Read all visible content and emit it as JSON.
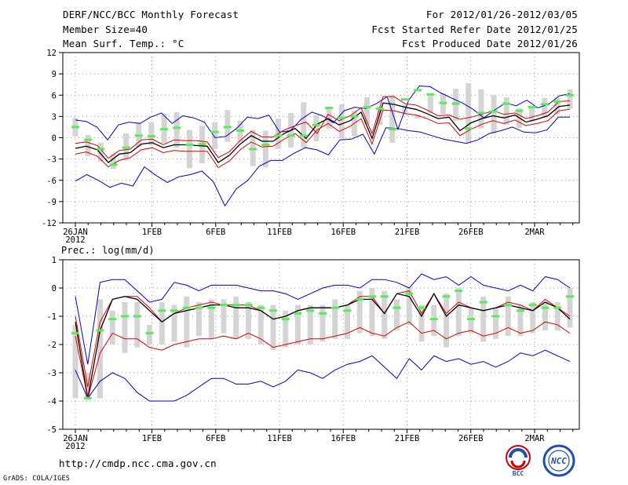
{
  "header": {
    "title": "DERF/NCC/BCC Monthly Forecast",
    "member_size": "Member Size=40",
    "variable": "Mean Surf. Temp.: °C",
    "period": "For 2012/01/26-2012/03/05",
    "started": "Fcst Started Refer Date 2012/01/25",
    "produced": "Fcst Produced Date 2012/01/26"
  },
  "footer": {
    "url": "http://cmdp.ncc.cma.gov.cn",
    "credit": "GrADS: COLA/IGES",
    "logo_bcc": "BCC",
    "logo_ncc": "NCC"
  },
  "colors": {
    "box": "#d4d4d4",
    "obs": "#55ee55",
    "mean": "#000000",
    "inner": "#dd0000",
    "outer": "#0000cc"
  },
  "chart_data": [
    {
      "type": "line",
      "title": "Mean Surf. Temp.: °C",
      "x_tick_labels": [
        "26JAN",
        "1FEB",
        "6FEB",
        "11FEB",
        "16FEB",
        "21FEB",
        "26FEB",
        "2MAR"
      ],
      "x_tick_days": [
        0,
        6,
        11,
        16,
        21,
        26,
        31,
        36
      ],
      "x_sub_label": "2012",
      "ylim": [
        -12,
        12
      ],
      "yticks": [
        12,
        9,
        6,
        3,
        0,
        -3,
        -6,
        -9,
        -12
      ],
      "days": 40,
      "series": [
        {
          "name": "ensemble max",
          "color": "#0000cc",
          "values": [
            2.5,
            2.3,
            1.5,
            -0.3,
            1.8,
            2.2,
            2.0,
            2.9,
            3.5,
            2.0,
            3.1,
            2.8,
            2.2,
            0.0,
            0.2,
            1.3,
            2.9,
            2.7,
            3.2,
            0.8,
            1.0,
            2.6,
            3.6,
            3.1,
            2.1,
            3.8,
            4.3,
            4.1,
            4.8,
            5.8,
            1.2,
            5.3,
            7.3,
            7.2,
            6.3,
            5.6,
            4.9,
            4.0,
            2.8,
            3.9,
            4.9,
            4.5,
            5.3,
            4.2,
            4.7,
            5.9,
            6.2
          ]
        },
        {
          "name": "upper spread",
          "color": "#dd0000",
          "values": [
            -0.8,
            -0.6,
            -1.1,
            -2.9,
            -1.8,
            -1.6,
            -0.3,
            -0.2,
            -1.0,
            -0.3,
            -0.4,
            -0.4,
            -0.6,
            -2.8,
            -2.0,
            -0.4,
            0.9,
            0.1,
            0.1,
            1.1,
            1.7,
            2.2,
            0.6,
            3.3,
            2.4,
            3.1,
            4.2,
            0.6,
            5.8,
            5.8,
            4.8,
            4.6,
            3.9,
            3.1,
            3.2,
            2.6,
            2.9,
            3.3,
            3.8,
            3.3,
            3.5,
            2.7,
            3.1,
            3.6,
            5.1,
            5.2
          ]
        },
        {
          "name": "ensemble mean",
          "color": "#000000",
          "values": [
            -1.5,
            -1.2,
            -1.7,
            -3.5,
            -2.3,
            -2.1,
            -0.9,
            -0.7,
            -1.4,
            -1.0,
            -1.0,
            -1.1,
            -1.2,
            -3.5,
            -2.5,
            -0.9,
            0.3,
            -0.5,
            -0.5,
            0.6,
            1.3,
            -0.1,
            1.9,
            2.7,
            1.8,
            2.4,
            3.6,
            -0.1,
            4.9,
            4.7,
            4.3,
            4.0,
            3.4,
            2.7,
            2.9,
            1.0,
            2.1,
            2.7,
            3.1,
            2.8,
            3.2,
            2.2,
            2.6,
            3.1,
            4.4,
            4.6
          ]
        },
        {
          "name": "lower spread",
          "color": "#dd0000",
          "values": [
            -2.3,
            -2.0,
            -2.6,
            -4.1,
            -3.2,
            -2.8,
            -1.7,
            -1.4,
            -2.1,
            -1.8,
            -1.9,
            -1.9,
            -1.9,
            -4.2,
            -3.3,
            -1.7,
            -0.6,
            -1.3,
            -1.2,
            -0.2,
            0.6,
            -0.7,
            1.1,
            2.0,
            0.9,
            1.6,
            2.7,
            -0.9,
            3.9,
            3.8,
            3.4,
            3.2,
            2.7,
            2.0,
            2.1,
            0.3,
            1.2,
            1.9,
            2.4,
            2.0,
            2.5,
            1.7,
            2.0,
            2.4,
            3.8,
            4.0
          ]
        },
        {
          "name": "ensemble min",
          "color": "#0000cc",
          "values": [
            -6.1,
            -5.2,
            -6.0,
            -7.0,
            -6.4,
            -6.8,
            -4.1,
            -5.3,
            -6.3,
            -5.5,
            -5.2,
            -4.7,
            -6.2,
            -9.6,
            -7.2,
            -6.0,
            -4.0,
            -3.2,
            -3.2,
            -2.2,
            -1.4,
            -1.7,
            -2.4,
            -0.3,
            -0.2,
            0.5,
            -2.3,
            1.4,
            1.3,
            1.0,
            0.8,
            0.3,
            -0.2,
            -0.5,
            -0.8,
            -0.3,
            0.6,
            1.0,
            1.5,
            0.8,
            0.7,
            1.1,
            2.9,
            2.9
          ]
        },
        {
          "name": "observed/green marks",
          "color": "#55ee55",
          "values": [
            1.5,
            -0.3,
            -1.6,
            -3.8,
            -1.4,
            0.3,
            0.2,
            1.2,
            1.4,
            -1.0,
            -0.9,
            0.8,
            1.5,
            1.0,
            -1.6,
            -1.0,
            0.3,
            0.3,
            0.3,
            1.8,
            4.2,
            2.8,
            3.0,
            4.3,
            4.1,
            1.2,
            5.4,
            6.7,
            6.1,
            4.9,
            4.8,
            1.3,
            3.5,
            3.7,
            4.8,
            3.8,
            4.3,
            4.7,
            5.1,
            6.0
          ]
        },
        {
          "name": "box upper",
          "color": "#d4d4d4",
          "values": [
            2.8,
            0.4,
            -0.7,
            -2.3,
            0.6,
            2.2,
            2.2,
            3.4,
            3.6,
            1.1,
            1.7,
            2.2,
            3.9,
            2.4,
            1.1,
            1.0,
            2.7,
            3.5,
            5.0,
            3.2,
            4.3,
            4.7,
            3.8,
            5.7,
            4.4,
            6.0,
            4.6,
            2.7,
            6.2,
            6.2,
            6.9,
            7.7,
            6.8,
            6.0,
            5.7,
            4.2,
            4.5,
            5.6,
            5.6,
            6.8,
            5.2,
            5.5,
            6.2,
            6.5
          ]
        },
        {
          "name": "box lower",
          "color": "#d4d4d4",
          "values": [
            0.2,
            -2.6,
            -3.4,
            -4.4,
            -3.2,
            -1.3,
            -1.1,
            -0.8,
            -1.4,
            -4.3,
            -3.6,
            -1.6,
            -0.6,
            -0.6,
            -4.0,
            -4.2,
            -1.6,
            -1.4,
            -1.4,
            -0.5,
            1.3,
            -0.1,
            0.2,
            1.9,
            1.8,
            -0.7,
            3.4,
            3.3,
            3.5,
            3.3,
            2.4,
            -0.7,
            1.3,
            0.6,
            1.8,
            1.4,
            2.3,
            2.8,
            3.3,
            4.1
          ]
        }
      ]
    },
    {
      "type": "line",
      "title": "Prec.: log(mm/d)",
      "x_tick_labels": [
        "26JAN",
        "1FEB",
        "6FEB",
        "11FEB",
        "16FEB",
        "21FEB",
        "26FEB",
        "2MAR"
      ],
      "x_tick_days": [
        0,
        6,
        11,
        16,
        21,
        26,
        31,
        36
      ],
      "x_sub_label": "2012",
      "ylim": [
        -5,
        1
      ],
      "yticks": [
        1,
        0,
        -1,
        -2,
        -3,
        -4,
        -5
      ],
      "days": 40,
      "series": [
        {
          "name": "ensemble max",
          "color": "#0000cc",
          "values": [
            -0.3,
            -2.7,
            0.2,
            0.3,
            0.3,
            -0.1,
            -0.5,
            -0.4,
            0.2,
            0.1,
            -0.1,
            0.1,
            0.1,
            0.1,
            0.0,
            -0.1,
            -0.1,
            -0.2,
            -0.4,
            -0.2,
            0.0,
            0.1,
            0.1,
            0.0,
            0.3,
            0.3,
            0.2,
            0.0,
            0.5,
            0.3,
            0.4,
            0.1,
            0.4,
            0.1,
            0.0,
            -0.1,
            0.1,
            -0.1,
            0.4,
            0.3,
            0.0
          ]
        },
        {
          "name": "upper spread",
          "color": "#dd0000",
          "values": [
            -1.0,
            -3.5,
            -1.2,
            -0.4,
            -0.3,
            -0.3,
            -0.7,
            -1.2,
            -0.9,
            -0.7,
            -0.6,
            -0.5,
            -0.6,
            -0.6,
            -0.6,
            -0.8,
            -1.1,
            -1.0,
            -0.8,
            -0.7,
            -0.7,
            -0.7,
            -0.6,
            -0.3,
            -0.3,
            -0.9,
            -0.2,
            -0.1,
            -0.9,
            -0.2,
            -0.9,
            -0.5,
            -0.7,
            -0.8,
            -0.7,
            -0.5,
            -0.6,
            -0.8,
            -0.4,
            -0.7,
            -1.0
          ]
        },
        {
          "name": "ensemble mean",
          "color": "#000000",
          "values": [
            -1.2,
            -3.9,
            -1.5,
            -0.4,
            -0.3,
            -0.4,
            -0.8,
            -1.2,
            -0.9,
            -0.8,
            -0.7,
            -0.6,
            -0.6,
            -0.7,
            -0.7,
            -0.8,
            -1.1,
            -1.0,
            -0.8,
            -0.7,
            -0.7,
            -0.7,
            -0.6,
            -0.4,
            -0.4,
            -0.9,
            -0.2,
            -0.3,
            -1.0,
            -0.2,
            -1.0,
            -0.6,
            -0.7,
            -0.8,
            -0.7,
            -0.6,
            -0.7,
            -0.8,
            -0.5,
            -0.7,
            -1.1
          ]
        },
        {
          "name": "lower spread",
          "color": "#dd0000",
          "values": [
            -1.7,
            -3.9,
            -2.3,
            -1.6,
            -1.8,
            -1.8,
            -2.1,
            -2.2,
            -2.0,
            -1.9,
            -1.8,
            -1.8,
            -1.7,
            -1.8,
            -1.6,
            -1.8,
            -2.1,
            -2.0,
            -1.9,
            -1.8,
            -1.8,
            -1.7,
            -1.6,
            -1.4,
            -1.6,
            -1.7,
            -1.4,
            -1.2,
            -1.6,
            -1.5,
            -1.8,
            -1.6,
            -1.5,
            -1.7,
            -1.6,
            -1.4,
            -1.6,
            -1.5,
            -1.2,
            -1.3,
            -1.6
          ]
        },
        {
          "name": "ensemble min",
          "color": "#0000cc",
          "values": [
            -2.9,
            -3.9,
            -3.3,
            -3.0,
            -3.2,
            -3.7,
            -4.0,
            -4.0,
            -4.0,
            -3.8,
            -3.5,
            -3.2,
            -3.2,
            -3.4,
            -3.4,
            -3.3,
            -3.5,
            -3.3,
            -2.9,
            -3.0,
            -3.2,
            -2.9,
            -2.7,
            -2.6,
            -2.4,
            -2.8,
            -3.2,
            -2.5,
            -2.9,
            -2.4,
            -2.6,
            -2.5,
            -2.7,
            -2.6,
            -2.8,
            -2.6,
            -2.3,
            -2.4,
            -2.2,
            -2.4,
            -2.6
          ]
        },
        {
          "name": "observed/green marks",
          "color": "#55ee55",
          "values": [
            -1.6,
            -3.9,
            -1.5,
            -1.1,
            -1.0,
            -1.0,
            -1.6,
            -0.8,
            -0.8,
            -0.7,
            -0.7,
            -0.7,
            -0.6,
            -0.6,
            -0.6,
            -0.7,
            -0.8,
            -1.1,
            -0.9,
            -0.8,
            -0.9,
            -0.7,
            -0.8,
            -0.4,
            -0.3,
            -0.3,
            -0.7,
            -0.2,
            -0.7,
            -1.1,
            -0.3,
            -0.1,
            -1.1,
            -0.5,
            -1.0,
            -0.6,
            -0.8,
            -0.6,
            -0.7,
            -0.7,
            -0.3
          ]
        },
        {
          "name": "box upper",
          "color": "#d4d4d4",
          "values": [
            -1.3,
            -3.0,
            -0.4,
            -0.8,
            -0.5,
            -0.5,
            -1.3,
            -0.5,
            -0.6,
            -0.3,
            -0.5,
            -0.4,
            -0.4,
            -0.3,
            -0.5,
            -0.6,
            -0.6,
            -0.8,
            -0.6,
            -0.6,
            -0.6,
            -0.4,
            -0.6,
            -0.1,
            0.0,
            -0.1,
            -0.4,
            0.0,
            -0.6,
            -0.6,
            -0.2,
            0.0,
            -0.7,
            -0.3,
            -0.7,
            -0.3,
            -0.6,
            -0.5,
            -0.5,
            -0.5,
            0.0
          ]
        },
        {
          "name": "box lower",
          "color": "#d4d4d4",
          "values": [
            -3.9,
            -3.9,
            -3.9,
            -2.0,
            -2.3,
            -2.1,
            -2.0,
            -2.0,
            -1.9,
            -2.1,
            -1.7,
            -1.8,
            -1.6,
            -1.8,
            -1.8,
            -2.0,
            -2.2,
            -2.1,
            -2.0,
            -2.0,
            -1.9,
            -1.8,
            -1.8,
            -1.6,
            -1.7,
            -1.8,
            -1.5,
            -1.3,
            -1.9,
            -1.7,
            -2.1,
            -1.7,
            -1.6,
            -1.9,
            -1.8,
            -1.7,
            -1.7,
            -1.6,
            -1.5,
            -1.5,
            -1.4
          ]
        }
      ]
    }
  ]
}
